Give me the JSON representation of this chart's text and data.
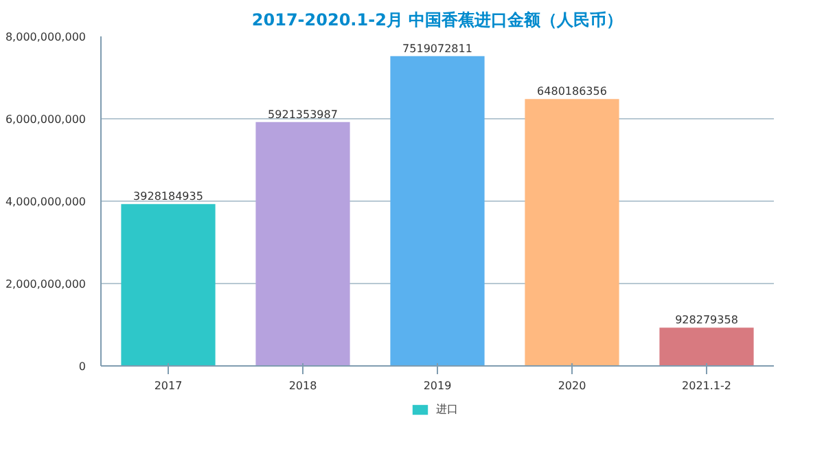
{
  "chart_data": {
    "type": "bar",
    "title": "2017-2020.1-2月 中国香蕉进口金额（人民币）",
    "categories": [
      "2017",
      "2018",
      "2019",
      "2020",
      "2021.1-2"
    ],
    "series": [
      {
        "name": "进口",
        "color": "#2ec7c9",
        "colors": [
          "#2ec7c9",
          "#b6a2de",
          "#5ab1ef",
          "#ffb980",
          "#d87a80"
        ],
        "values": [
          3928184935,
          5921353987,
          7519072811,
          6480186356,
          928279358
        ]
      }
    ],
    "ylim": [
      0,
      8000000000
    ],
    "yticks": [
      {
        "value": 0,
        "label": "0"
      },
      {
        "value": 2000000000,
        "label": "2,000,000,000"
      },
      {
        "value": 4000000000,
        "label": "4,000,000,000"
      },
      {
        "value": 6000000000,
        "label": "6,000,000,000"
      },
      {
        "value": 8000000000,
        "label": "8,000,000,000"
      }
    ],
    "grid": "y",
    "legend": "bottom",
    "data_labels": true
  }
}
